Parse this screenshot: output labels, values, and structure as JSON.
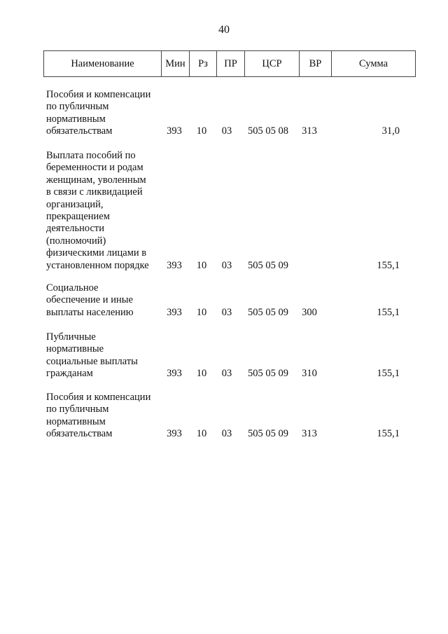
{
  "page_number": "40",
  "table": {
    "headers": [
      "Наименование",
      "Мин",
      "Рз",
      "ПР",
      "ЦСР",
      "ВР",
      "Сумма"
    ],
    "rows": [
      {
        "name": "Пособия и компенсации\nпо публичным\nнормативным\nобязательствам",
        "min": "393",
        "rz": "10",
        "pr": "03",
        "csr": "505 05 08",
        "vr": "313",
        "sum": "31,0"
      },
      {
        "name": "Выплата пособий по\nбеременности и родам\nженщинам, уволенным\nв связи с ликвидацией\nорганизаций,\nпрекращением\nдеятельности\n(полномочий)\nфизическими лицами в\nустановленном порядке",
        "min": "393",
        "rz": "10",
        "pr": "03",
        "csr": "505 05 09",
        "vr": "",
        "sum": "155,1"
      },
      {
        "name": "Социальное\nобеспечение и иные\nвыплаты населению",
        "min": "393",
        "rz": "10",
        "pr": "03",
        "csr": "505 05 09",
        "vr": "300",
        "sum": "155,1"
      },
      {
        "name": "Публичные\nнормативные\nсоциальные выплаты\nгражданам",
        "min": "393",
        "rz": "10",
        "pr": "03",
        "csr": "505 05 09",
        "vr": "310",
        "sum": "155,1"
      },
      {
        "name": "Пособия и компенсации\nпо публичным\nнормативным\nобязательствам",
        "min": "393",
        "rz": "10",
        "pr": "03",
        "csr": "505 05 09",
        "vr": "313",
        "sum": "155,1"
      }
    ]
  }
}
